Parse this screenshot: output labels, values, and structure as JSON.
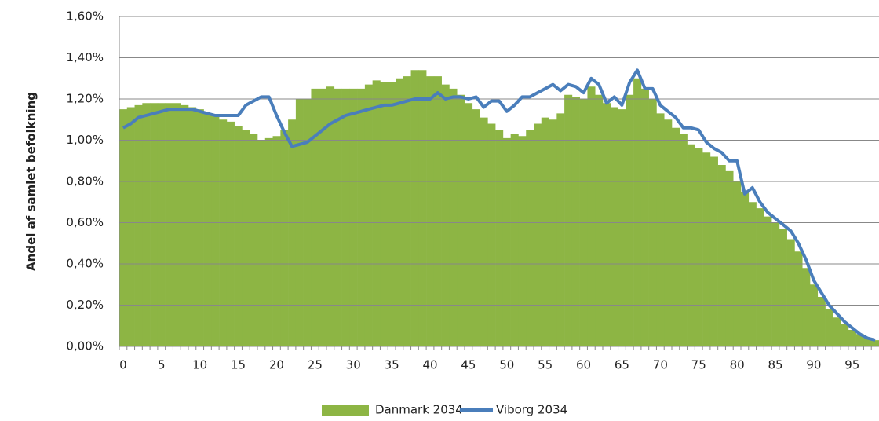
{
  "chart_data": {
    "type": "bar+line",
    "y_label": "Andel af samlet befolkning",
    "categories": [
      0,
      null,
      null,
      null,
      null,
      5,
      null,
      null,
      null,
      null,
      10,
      null,
      null,
      null,
      null,
      15,
      null,
      null,
      null,
      null,
      20,
      null,
      null,
      null,
      null,
      25,
      null,
      null,
      null,
      null,
      30,
      null,
      null,
      null,
      null,
      35,
      null,
      null,
      null,
      null,
      40,
      null,
      null,
      null,
      null,
      45,
      null,
      null,
      null,
      null,
      50,
      null,
      null,
      null,
      null,
      55,
      null,
      null,
      null,
      null,
      60,
      null,
      null,
      null,
      null,
      65,
      null,
      null,
      null,
      null,
      70,
      null,
      null,
      null,
      null,
      75,
      null,
      null,
      null,
      null,
      80,
      null,
      null,
      null,
      null,
      85,
      null,
      null,
      null,
      null,
      90,
      null,
      null,
      null,
      null,
      95,
      null,
      null,
      null
    ],
    "series": [
      {
        "name": "Danmark 2034",
        "type": "bar",
        "color": "#8db544",
        "values": [
          1.15,
          1.16,
          1.17,
          1.18,
          1.18,
          1.18,
          1.18,
          1.18,
          1.17,
          1.16,
          1.15,
          1.13,
          1.12,
          1.1,
          1.09,
          1.07,
          1.05,
          1.03,
          1.0,
          1.01,
          1.02,
          1.05,
          1.1,
          1.2,
          1.2,
          1.25,
          1.25,
          1.26,
          1.25,
          1.25,
          1.25,
          1.25,
          1.27,
          1.29,
          1.28,
          1.28,
          1.3,
          1.31,
          1.34,
          1.34,
          1.31,
          1.31,
          1.27,
          1.25,
          1.22,
          1.18,
          1.15,
          1.11,
          1.08,
          1.05,
          1.01,
          1.03,
          1.02,
          1.05,
          1.08,
          1.11,
          1.1,
          1.13,
          1.22,
          1.21,
          1.2,
          1.26,
          1.22,
          1.18,
          1.16,
          1.15,
          1.22,
          1.3,
          1.25,
          1.2,
          1.13,
          1.1,
          1.06,
          1.03,
          0.98,
          0.96,
          0.94,
          0.92,
          0.88,
          0.85,
          0.8,
          0.75,
          0.7,
          0.67,
          0.63,
          0.6,
          0.57,
          0.52,
          0.46,
          0.38,
          0.3,
          0.24,
          0.18,
          0.14,
          0.11,
          0.08,
          0.06,
          0.04,
          0.03
        ]
      },
      {
        "name": "Viborg 2034",
        "type": "line",
        "color": "#4a7ebb",
        "values": [
          1.06,
          1.08,
          1.11,
          1.12,
          1.13,
          1.14,
          1.15,
          1.15,
          1.15,
          1.15,
          1.14,
          1.13,
          1.12,
          1.12,
          1.12,
          1.12,
          1.17,
          1.19,
          1.21,
          1.21,
          1.12,
          1.04,
          0.97,
          0.98,
          0.99,
          1.02,
          1.05,
          1.08,
          1.1,
          1.12,
          1.13,
          1.14,
          1.15,
          1.16,
          1.17,
          1.17,
          1.18,
          1.19,
          1.2,
          1.2,
          1.2,
          1.23,
          1.2,
          1.21,
          1.21,
          1.2,
          1.21,
          1.16,
          1.19,
          1.19,
          1.14,
          1.17,
          1.21,
          1.21,
          1.23,
          1.25,
          1.27,
          1.24,
          1.27,
          1.26,
          1.23,
          1.3,
          1.27,
          1.18,
          1.21,
          1.17,
          1.28,
          1.34,
          1.25,
          1.25,
          1.17,
          1.14,
          1.11,
          1.06,
          1.06,
          1.05,
          0.99,
          0.96,
          0.94,
          0.9,
          0.9,
          0.74,
          0.77,
          0.7,
          0.65,
          0.62,
          0.59,
          0.56,
          0.5,
          0.42,
          0.32,
          0.26,
          0.2,
          0.16,
          0.12,
          0.09,
          0.06,
          0.04,
          0.03
        ]
      }
    ],
    "ylim": [
      0,
      1.6
    ],
    "yticks": [
      {
        "value": 0,
        "label": "0,00%"
      },
      {
        "value": 0.2,
        "label": "0,20%"
      },
      {
        "value": 0.4,
        "label": "0,40%"
      },
      {
        "value": 0.6,
        "label": "0,60%"
      },
      {
        "value": 0.8,
        "label": "0,80%"
      },
      {
        "value": 1.0,
        "label": "1,00%"
      },
      {
        "value": 1.2,
        "label": "1,20%"
      },
      {
        "value": 1.4,
        "label": "1,40%"
      },
      {
        "value": 1.6,
        "label": "1,60%"
      }
    ],
    "grid": true,
    "legend": "bottom"
  }
}
